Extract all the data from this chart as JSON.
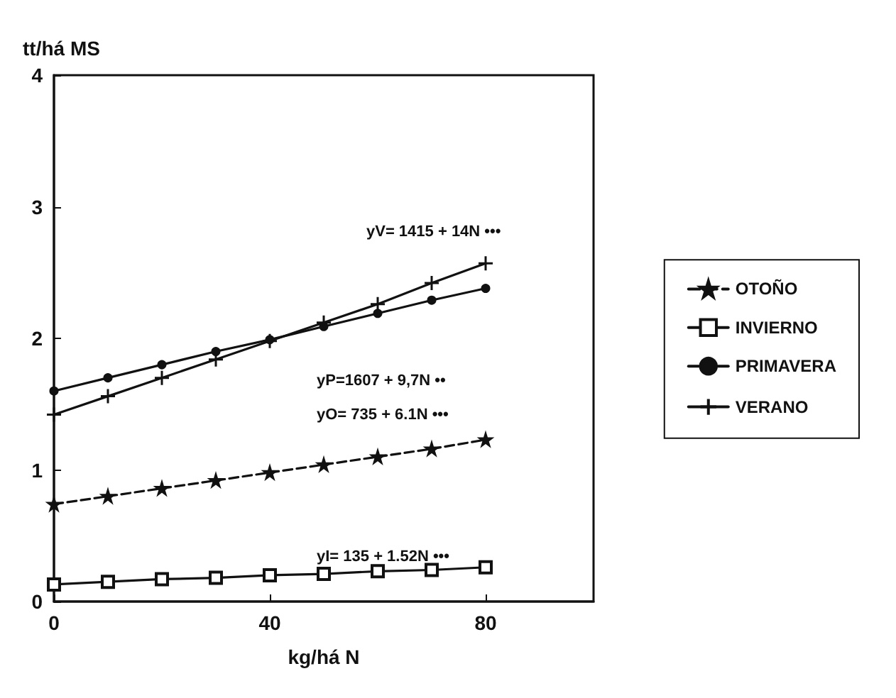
{
  "chart_data": {
    "type": "line",
    "xlabel": "kg/há N",
    "ylabel": "tt/há MS",
    "x": [
      0,
      10,
      20,
      30,
      40,
      50,
      60,
      70,
      80
    ],
    "series": [
      {
        "name": "OTOÑO",
        "color": "#111111",
        "marker": "star",
        "line_style": "dashed",
        "values": [
          0.74,
          0.8,
          0.86,
          0.92,
          0.98,
          1.04,
          1.1,
          1.16,
          1.23
        ]
      },
      {
        "name": "INVIERNO",
        "color": "#111111",
        "marker": "square",
        "line_style": "solid",
        "values": [
          0.13,
          0.15,
          0.17,
          0.18,
          0.2,
          0.21,
          0.23,
          0.24,
          0.26
        ]
      },
      {
        "name": "PRIMAVERA",
        "color": "#111111",
        "marker": "circle",
        "line_style": "solid",
        "values": [
          1.6,
          1.7,
          1.8,
          1.9,
          1.99,
          2.09,
          2.19,
          2.29,
          2.38
        ]
      },
      {
        "name": "VERANO",
        "color": "#111111",
        "marker": "cross",
        "line_style": "solid",
        "values": [
          1.42,
          1.56,
          1.7,
          1.84,
          1.98,
          2.12,
          2.26,
          2.42,
          2.57
        ]
      }
    ],
    "xlim": [
      0,
      100
    ],
    "xticks": [
      0,
      40,
      80
    ],
    "ylim": [
      0,
      4
    ],
    "yticks": [
      0,
      1,
      2,
      3,
      4
    ],
    "grid": false,
    "legend": "right",
    "annotations": [
      "yV= 1415 + 14N •••",
      "yP=1607 + 9,7N ••",
      "yO= 735 + 6.1N •••",
      "yI= 135 + 1.52N •••"
    ]
  }
}
